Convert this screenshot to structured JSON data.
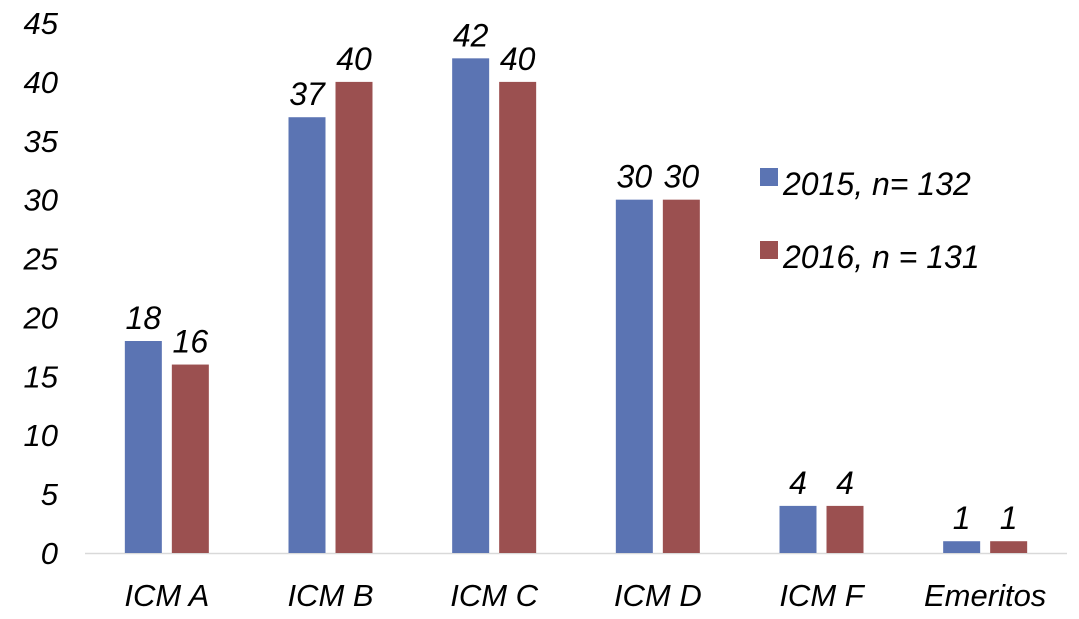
{
  "chart_data": {
    "type": "bar",
    "title": "",
    "xlabel": "",
    "ylabel": "",
    "categories": [
      "ICM A",
      "ICM B",
      "ICM C",
      "ICM D",
      "ICM F",
      "Emeritos"
    ],
    "series": [
      {
        "name": "2015, n= 132",
        "color": "#5b74b3",
        "values": [
          18,
          37,
          42,
          30,
          4,
          1
        ]
      },
      {
        "name": "2016, n = 131",
        "color": "#9b5050",
        "values": [
          16,
          40,
          40,
          30,
          4,
          1
        ]
      }
    ],
    "ylim": [
      0,
      45
    ],
    "yticks": [
      "0",
      "5",
      "10",
      "15",
      "20",
      "25",
      "30",
      "35",
      "40",
      "45"
    ],
    "grid": false,
    "legend": "right",
    "data_labels": true
  }
}
